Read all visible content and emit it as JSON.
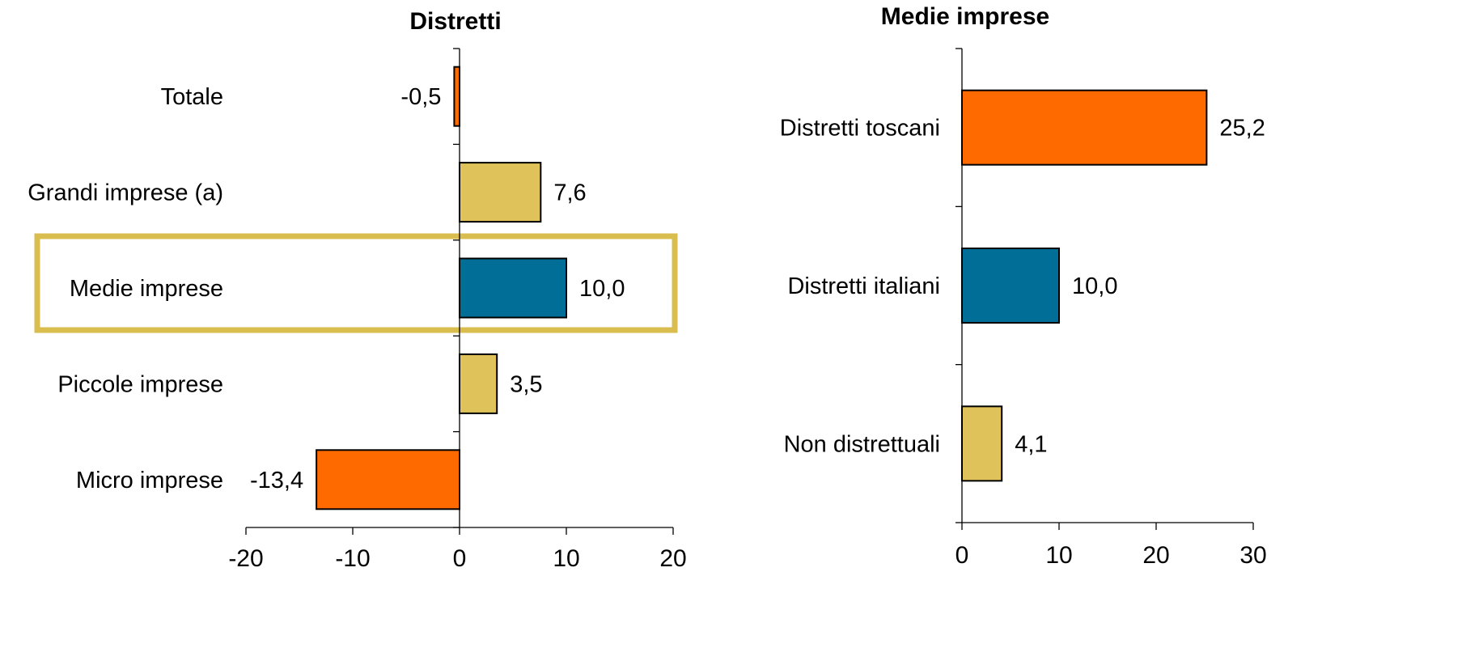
{
  "chart_data": [
    {
      "type": "bar",
      "orientation": "horizontal",
      "title": "Distretti",
      "categories": [
        "Totale",
        "Grandi imprese (a)",
        "Medie imprese",
        "Piccole imprese",
        "Micro imprese"
      ],
      "values": [
        -0.5,
        7.6,
        10.0,
        3.5,
        -13.4
      ],
      "value_labels": [
        "-0,5",
        "7,6",
        "10,0",
        "3,5",
        "-13,4"
      ],
      "bar_colors": [
        "#FF6A00",
        "#DFC35A",
        "#006E96",
        "#DFC35A",
        "#FF6A00"
      ],
      "highlighted_category": "Medie imprese",
      "highlight_color": "#D9BD4E",
      "xlim": [
        -20,
        20
      ],
      "xticks": [
        "-20",
        "-10",
        "0",
        "10",
        "20"
      ],
      "xlabel": "",
      "ylabel": "",
      "grid": false
    },
    {
      "type": "bar",
      "orientation": "horizontal",
      "title": "Medie imprese",
      "categories": [
        "Distretti toscani",
        "Distretti italiani",
        "Non distrettuali"
      ],
      "values": [
        25.2,
        10.0,
        4.1
      ],
      "value_labels": [
        "25,2",
        "10,0",
        "4,1"
      ],
      "bar_colors": [
        "#FF6A00",
        "#006E96",
        "#DFC35A"
      ],
      "xlim": [
        0,
        30
      ],
      "xticks": [
        "0",
        "10",
        "20",
        "30"
      ],
      "xlabel": "",
      "ylabel": "",
      "grid": false
    }
  ]
}
